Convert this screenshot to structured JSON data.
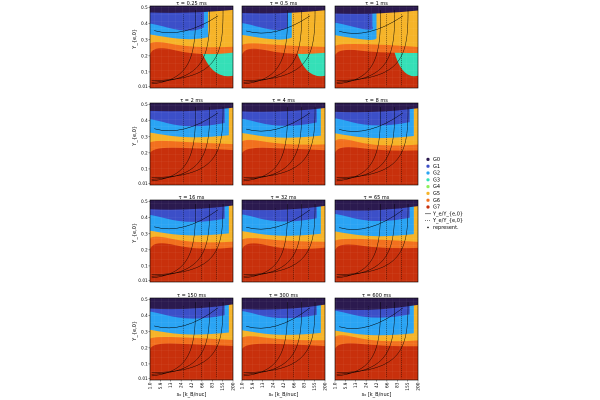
{
  "chart_data": {
    "type": "heatmap",
    "layout": {
      "rows": 4,
      "cols": 3
    },
    "panels": [
      {
        "title": "τ = 0.25 ms",
        "stage": 0
      },
      {
        "title": "τ = 0.5 ms",
        "stage": 1
      },
      {
        "title": "τ = 1 ms",
        "stage": 2
      },
      {
        "title": "τ = 2 ms",
        "stage": 3
      },
      {
        "title": "τ = 4 ms",
        "stage": 4
      },
      {
        "title": "τ = 8 ms",
        "stage": 5
      },
      {
        "title": "τ = 16 ms",
        "stage": 6
      },
      {
        "title": "τ = 32 ms",
        "stage": 7
      },
      {
        "title": "τ = 65 ms",
        "stage": 8
      },
      {
        "title": "τ = 150 ms",
        "stage": 9
      },
      {
        "title": "τ = 300 ms",
        "stage": 10
      },
      {
        "title": "τ = 600 ms",
        "stage": 11
      }
    ],
    "ylabel": "Y_{e,0}",
    "xlabel": "s₀ [k_B/nuc]",
    "y_ticks": [
      "0.5",
      "0.4",
      "0.3",
      "0.2",
      "0.1",
      "0.01"
    ],
    "y_tick_values": [
      0.5,
      0.4,
      0.3,
      0.2,
      0.1,
      0.01
    ],
    "x_ticks": [
      "1.0",
      "5.9",
      "13",
      "24",
      "42",
      "66",
      "83",
      "155",
      "200"
    ],
    "legend": [
      {
        "label": "G0",
        "color": "#2b1a4f"
      },
      {
        "label": "G1",
        "color": "#3c4fc8"
      },
      {
        "label": "G2",
        "color": "#2aa4f4"
      },
      {
        "label": "G3",
        "color": "#35e0b7"
      },
      {
        "label": "G4",
        "color": "#8ff05a"
      },
      {
        "label": "G5",
        "color": "#f6b429"
      },
      {
        "label": "G6",
        "color": "#f2701e"
      },
      {
        "label": "G7",
        "color": "#c8300c"
      },
      {
        "label": "Y_e/Y_{e,0}",
        "style": "solid"
      },
      {
        "label": "Y_e/Y_{e,0}",
        "style": "dotted"
      },
      {
        "label": "represent.",
        "style": "marker"
      }
    ]
  }
}
